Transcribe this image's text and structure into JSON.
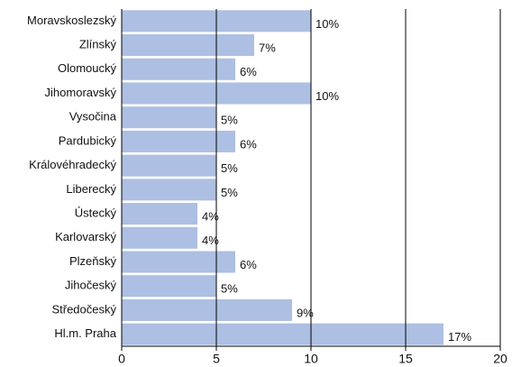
{
  "chart_data": {
    "type": "bar",
    "orientation": "horizontal",
    "categories": [
      "Moravskoslezský",
      "Zlínský",
      "Olomoucký",
      "Jihomoravský",
      "Vysočina",
      "Pardubický",
      "Královéhradecký",
      "Liberecký",
      "Ústecký",
      "Karlovarský",
      "Plzeňský",
      "Jihočeský",
      "Středočeský",
      "Hl.m. Praha"
    ],
    "values": [
      10,
      7,
      6,
      10,
      5,
      6,
      5,
      5,
      4,
      4,
      6,
      5,
      9,
      17
    ],
    "value_labels": [
      "10%",
      "7%",
      "6%",
      "10%",
      "5%",
      "6%",
      "5%",
      "5%",
      "4%",
      "4%",
      "6%",
      "5%",
      "9%",
      "17%"
    ],
    "color": "#adbfe2",
    "xlim": [
      0,
      20
    ],
    "xticks": [
      0,
      5,
      10,
      15,
      20
    ],
    "grid": true
  }
}
